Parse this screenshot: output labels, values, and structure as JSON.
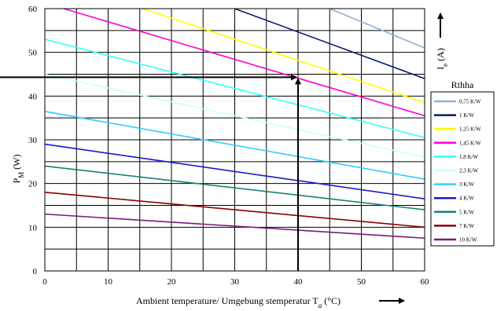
{
  "chart_data": {
    "type": "line",
    "xlabel": "Ambient temperature/ Umgebung stemperatur T",
    "xlabel_sub": "a",
    "xlabel_unit": " (°C)",
    "ylabel": "P",
    "ylabel_sub": "M",
    "ylabel_unit": " (W)",
    "ylabel2": "I",
    "ylabel2_sub": "e",
    "ylabel2_unit": " (A)",
    "xlim": [
      0,
      60
    ],
    "ylim": [
      0,
      60
    ],
    "x_ticks": [
      0,
      10,
      20,
      30,
      40,
      50,
      60
    ],
    "y_ticks": [
      0,
      10,
      20,
      30,
      40,
      50,
      60
    ],
    "x_tick_labels": [
      "0",
      "10",
      "20",
      "30",
      "40",
      "50",
      "60"
    ],
    "y_tick_labels": [
      "0",
      "10",
      "20",
      "30",
      "40",
      "50",
      "60"
    ],
    "grid": true,
    "legend_title": "Rthha",
    "legend_position": "right",
    "series": [
      {
        "name": "0,75 K/W",
        "color": "#8fb0d2",
        "x": [
          45,
          60
        ],
        "y": [
          60,
          51
        ]
      },
      {
        "name": "1 K/W",
        "color": "#0b1a6e",
        "x": [
          30,
          60
        ],
        "y": [
          60,
          44
        ]
      },
      {
        "name": "1,25 K/W",
        "color": "#ffff00",
        "x": [
          15.5,
          60
        ],
        "y": [
          60,
          38.5
        ]
      },
      {
        "name": "1,45 K/W",
        "color": "#ff00cc",
        "x": [
          3,
          60
        ],
        "y": [
          60,
          35.5
        ]
      },
      {
        "name": "1,8 K/W",
        "color": "#33ffff",
        "x": [
          0,
          60
        ],
        "y": [
          53,
          30.5
        ]
      },
      {
        "name": "2,3 K/W",
        "color": "#ccffff",
        "x": [
          0,
          60
        ],
        "y": [
          45,
          26
        ]
      },
      {
        "name": "3 K/W",
        "color": "#33ccff",
        "x": [
          0,
          60
        ],
        "y": [
          36.5,
          21
        ]
      },
      {
        "name": "4 K/W",
        "color": "#1a1acc",
        "x": [
          0,
          60
        ],
        "y": [
          29,
          16.5
        ]
      },
      {
        "name": "5 K/W",
        "color": "#1a8078",
        "x": [
          0,
          60
        ],
        "y": [
          24,
          14
        ]
      },
      {
        "name": "7 K/W",
        "color": "#8b0000",
        "x": [
          0,
          60
        ],
        "y": [
          18,
          10
        ]
      },
      {
        "name": "10 K/W",
        "color": "#7b1a7b",
        "x": [
          0,
          60
        ],
        "y": [
          13,
          7.5
        ]
      }
    ],
    "annotation": {
      "x": 40,
      "y": 44.3
    }
  }
}
